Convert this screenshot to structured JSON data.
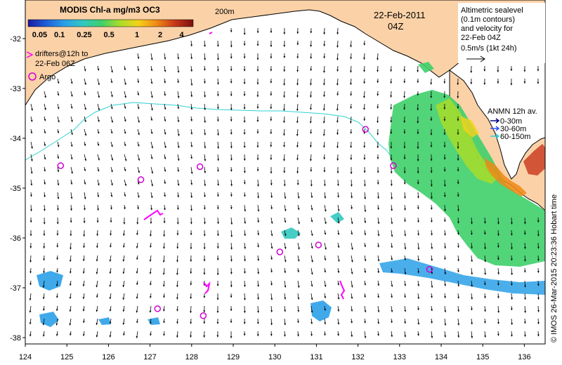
{
  "map": {
    "date_label": "22-Feb-2011",
    "time_label": "04Z",
    "depth_label": "200m",
    "colorbar": {
      "title": "MODIS Chl-a mg/m3 OC3",
      "ticks": [
        "0.05",
        "0.1",
        "0.25",
        "0.5",
        "1",
        "2",
        "4"
      ],
      "colors": [
        "#1a1aa0",
        "#1e5fd8",
        "#2aa0e8",
        "#31c8c0",
        "#3fcf6a",
        "#a8dc2a",
        "#f5d21a",
        "#f08a14",
        "#c8361a",
        "#7a1010"
      ]
    },
    "drifters_legend": "drifters@12h to 22-Feb 06Z",
    "drifters_legend_lines": [
      "drifters@12h to",
      "22-Feb 06Z"
    ],
    "argo_legend": "Argo",
    "altimetry_legend_lines": [
      "Altimetric sealevel",
      "(0.1m contours)",
      "and velocity for",
      "22-Feb 04Z",
      "0.5m/s (1kt 24h)"
    ],
    "anmn_legend": {
      "title": "ANMN 12h av.",
      "entries": [
        {
          "label": "0-30m",
          "color": "#000080"
        },
        {
          "label": "30-60m",
          "color": "#3050ff"
        },
        {
          "label": "60-150m",
          "color": "#30d0d0"
        }
      ]
    },
    "credit": "© IMOS 26-Mar-2015 20:23:36 Hobart time",
    "x_ticks": [
      "124",
      "125",
      "126",
      "127",
      "128",
      "129",
      "130",
      "131",
      "132",
      "133",
      "134",
      "135",
      "136"
    ],
    "y_ticks": [
      "-32",
      "-33",
      "-34",
      "-35",
      "-36",
      "-37",
      "-38"
    ],
    "colors": {
      "land": "#fbd2a8",
      "ocean": "#ffffff",
      "argo": "#d000d0",
      "drifter": "#ff00ff",
      "contour_200m": "#30d0d0"
    },
    "argo_floats": [
      {
        "lon": 124.85,
        "lat": -34.55
      },
      {
        "lon": 126.78,
        "lat": -34.83
      },
      {
        "lon": 128.2,
        "lat": -34.57
      },
      {
        "lon": 132.18,
        "lat": -33.82
      },
      {
        "lon": 132.85,
        "lat": -34.55
      },
      {
        "lon": 130.12,
        "lat": -36.28
      },
      {
        "lon": 131.05,
        "lat": -36.14
      },
      {
        "lon": 133.72,
        "lat": -36.63
      },
      {
        "lon": 127.18,
        "lat": -37.42
      },
      {
        "lon": 128.28,
        "lat": -37.56
      }
    ]
  }
}
